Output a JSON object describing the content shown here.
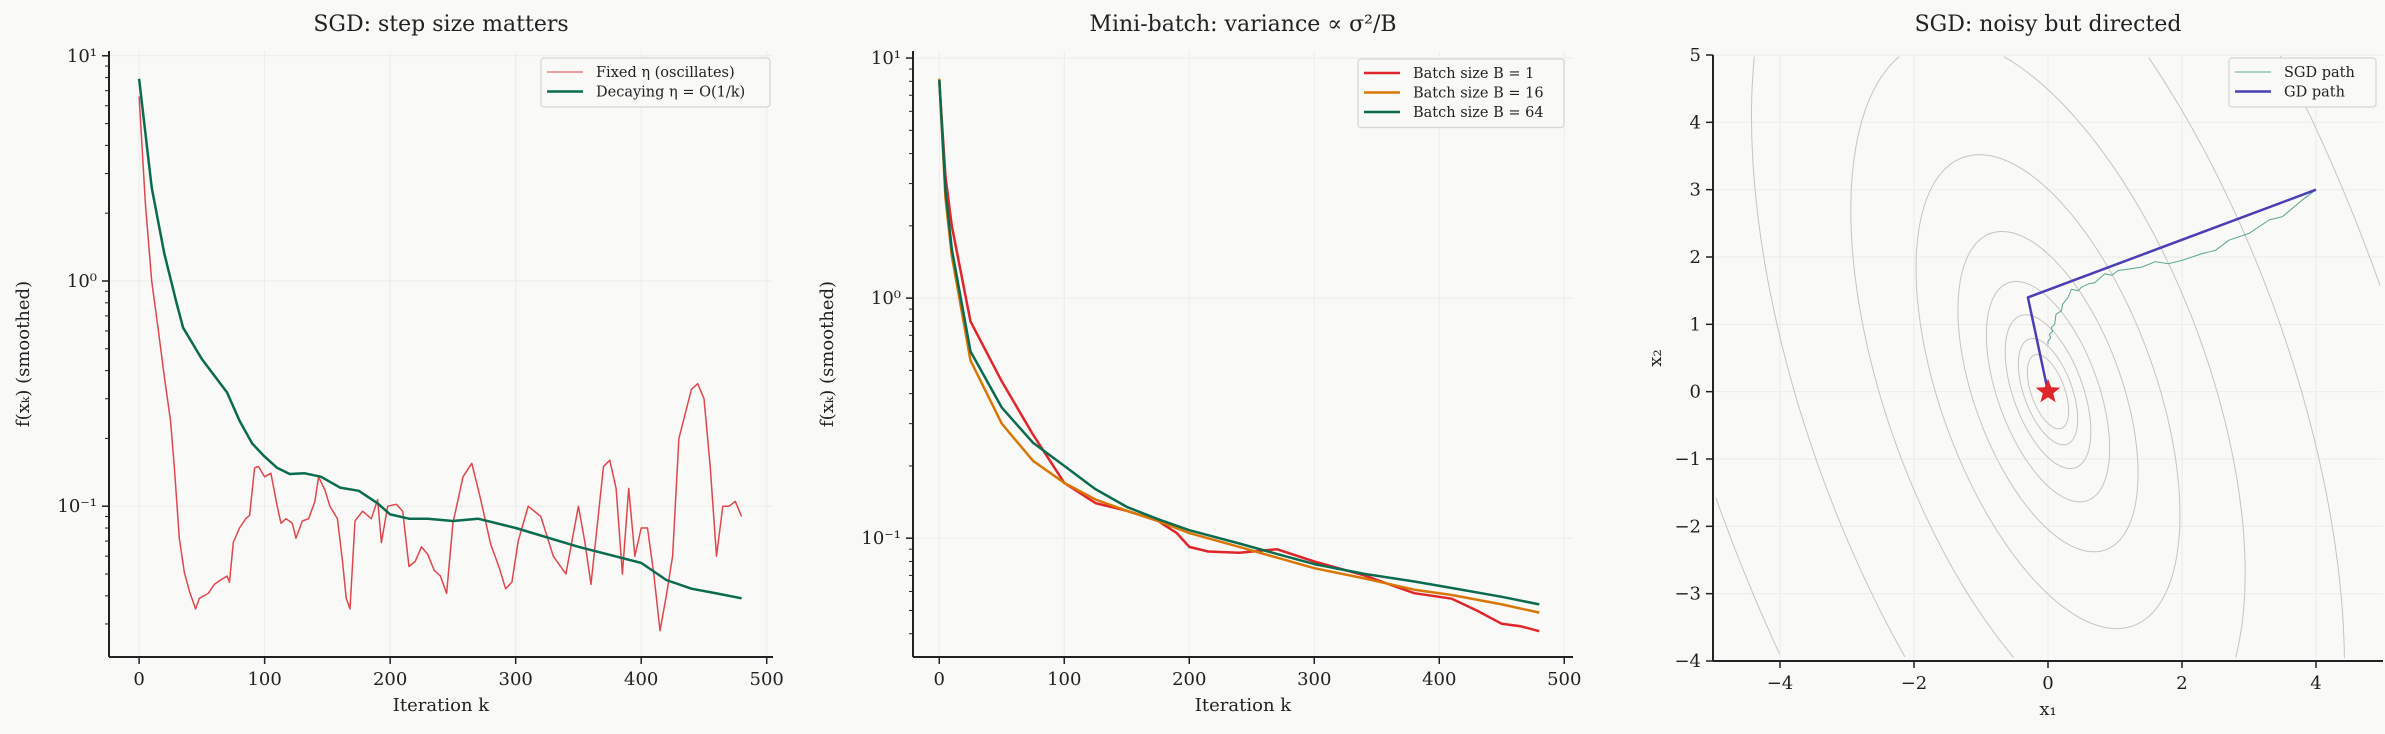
{
  "chart_data": [
    {
      "type": "line",
      "title": "SGD: step size matters",
      "xlabel": "Iteration k",
      "ylabel": "f(xₖ) (smoothed)",
      "xlim": [
        -24,
        505
      ],
      "ylim": [
        0.0214,
        10.5
      ],
      "yscale": "log",
      "grid": true,
      "legend": "top-right",
      "xticks": [
        0,
        100,
        200,
        300,
        400,
        500
      ],
      "xticklabels": [
        "0",
        "100",
        "200",
        "300",
        "400",
        "500"
      ],
      "yticks": [
        10,
        1,
        0.1
      ],
      "yticklabels": [
        "10¹",
        "10⁰",
        "10⁻¹"
      ],
      "series": [
        {
          "name": "Fixed η (oscillates)",
          "color": "#e0474c",
          "width": 1.5,
          "x": [
            0,
            5,
            10,
            15,
            20,
            25,
            28,
            32,
            36,
            40,
            45,
            48,
            55,
            60,
            65,
            70,
            72,
            75,
            80,
            85,
            88,
            90,
            92,
            95,
            100,
            105,
            110,
            113,
            117,
            122,
            125,
            130,
            135,
            140,
            143,
            148,
            152,
            158,
            162,
            165,
            168,
            172,
            178,
            185,
            190,
            193,
            198,
            205,
            210,
            215,
            220,
            225,
            230,
            235,
            240,
            245,
            250,
            258,
            265,
            272,
            280,
            287,
            292,
            297,
            302,
            310,
            320,
            330,
            340,
            350,
            355,
            360,
            370,
            375,
            380,
            385,
            390,
            395,
            400,
            405,
            410,
            415,
            420,
            425,
            430,
            440,
            445,
            450,
            455,
            460,
            465,
            470,
            475,
            480
          ],
          "y": [
            6.6,
            2.2,
            1.0,
            0.62,
            0.38,
            0.24,
            0.15,
            0.072,
            0.051,
            0.042,
            0.035,
            0.039,
            0.041,
            0.045,
            0.047,
            0.049,
            0.046,
            0.069,
            0.08,
            0.088,
            0.091,
            0.116,
            0.148,
            0.15,
            0.135,
            0.14,
            0.1,
            0.084,
            0.088,
            0.084,
            0.072,
            0.086,
            0.088,
            0.105,
            0.135,
            0.118,
            0.1,
            0.088,
            0.057,
            0.039,
            0.035,
            0.086,
            0.095,
            0.088,
            0.107,
            0.069,
            0.1,
            0.102,
            0.095,
            0.054,
            0.057,
            0.066,
            0.061,
            0.052,
            0.049,
            0.041,
            0.084,
            0.135,
            0.155,
            0.108,
            0.068,
            0.053,
            0.043,
            0.046,
            0.07,
            0.1,
            0.09,
            0.06,
            0.05,
            0.1,
            0.07,
            0.045,
            0.15,
            0.16,
            0.12,
            0.05,
            0.12,
            0.06,
            0.08,
            0.08,
            0.05,
            0.028,
            0.04,
            0.06,
            0.2,
            0.33,
            0.35,
            0.3,
            0.15,
            0.06,
            0.1,
            0.1,
            0.105,
            0.09
          ]
        },
        {
          "name": "Decaying η = O(1/k)",
          "color": "#0b6b4f",
          "width": 2.5,
          "x": [
            0,
            10,
            20,
            30,
            35,
            50,
            70,
            80,
            90,
            100,
            110,
            120,
            132,
            145,
            160,
            175,
            190,
            200,
            215,
            230,
            250,
            270,
            300,
            350,
            400,
            420,
            440,
            460,
            480
          ],
          "y": [
            7.9,
            2.6,
            1.33,
            0.79,
            0.62,
            0.45,
            0.32,
            0.24,
            0.19,
            0.166,
            0.148,
            0.139,
            0.14,
            0.135,
            0.121,
            0.117,
            0.103,
            0.092,
            0.088,
            0.088,
            0.086,
            0.088,
            0.08,
            0.066,
            0.056,
            0.047,
            0.043,
            0.041,
            0.039
          ]
        }
      ]
    },
    {
      "type": "line",
      "title": "Mini-batch: variance ∝ σ²/B",
      "xlabel": "Iteration k",
      "ylabel": "f(xₖ) (smoothed)",
      "xlim": [
        -21,
        507
      ],
      "ylim": [
        0.032,
        10.7
      ],
      "yscale": "log",
      "grid": true,
      "legend": "top-right",
      "xticks": [
        0,
        100,
        200,
        300,
        400,
        500
      ],
      "xticklabels": [
        "0",
        "100",
        "200",
        "300",
        "400",
        "500"
      ],
      "yticks": [
        10,
        1,
        0.1
      ],
      "yticklabels": [
        "10¹",
        "10⁰",
        "10⁻¹"
      ],
      "series": [
        {
          "name": "Batch size B = 1",
          "color": "#e0262a",
          "width": 2.5,
          "x": [
            0,
            5,
            10,
            25,
            50,
            75,
            100,
            125,
            150,
            175,
            190,
            200,
            215,
            240,
            270,
            300,
            340,
            380,
            410,
            430,
            450,
            465,
            480
          ],
          "y": [
            8.0,
            3.2,
            2.0,
            0.8,
            0.45,
            0.27,
            0.17,
            0.14,
            0.13,
            0.118,
            0.105,
            0.092,
            0.088,
            0.087,
            0.09,
            0.08,
            0.07,
            0.059,
            0.056,
            0.05,
            0.044,
            0.043,
            0.041
          ]
        },
        {
          "name": "Batch size B = 16",
          "color": "#d97706",
          "width": 2.5,
          "x": [
            0,
            5,
            10,
            25,
            50,
            75,
            100,
            125,
            150,
            175,
            200,
            240,
            270,
            300,
            340,
            380,
            410,
            450,
            480
          ],
          "y": [
            8.2,
            2.6,
            1.5,
            0.55,
            0.3,
            0.21,
            0.17,
            0.145,
            0.13,
            0.118,
            0.105,
            0.092,
            0.083,
            0.075,
            0.068,
            0.061,
            0.058,
            0.053,
            0.049
          ]
        },
        {
          "name": "Batch size B = 64",
          "color": "#0b6b4f",
          "width": 2.5,
          "x": [
            0,
            5,
            10,
            25,
            50,
            75,
            100,
            125,
            150,
            175,
            200,
            240,
            270,
            300,
            340,
            380,
            410,
            450,
            480
          ],
          "y": [
            8.1,
            2.8,
            1.6,
            0.6,
            0.35,
            0.25,
            0.2,
            0.16,
            0.135,
            0.12,
            0.108,
            0.095,
            0.086,
            0.078,
            0.071,
            0.066,
            0.062,
            0.057,
            0.053
          ]
        }
      ]
    },
    {
      "type": "line",
      "title": "SGD: noisy but directed",
      "xlabel": "x₁",
      "ylabel": "x₂",
      "xlim": [
        -5,
        5
      ],
      "ylim": [
        -4,
        5
      ],
      "grid": true,
      "legend": "top-right",
      "xticks": [
        -4,
        -2,
        0,
        2,
        4
      ],
      "xticklabels": [
        "−4",
        "−2",
        "0",
        "2",
        "4"
      ],
      "yticks": [
        -4,
        -3,
        -2,
        -1,
        0,
        1,
        2,
        3,
        4,
        5
      ],
      "yticklabels": [
        "−4",
        "−3",
        "−2",
        "−1",
        "0",
        "1",
        "2",
        "3",
        "4",
        "5"
      ],
      "contours": {
        "color": "#c4c4c4",
        "tilt_deg": 20,
        "semi_axes": [
          [
            0.25,
            0.58
          ],
          [
            0.36,
            0.83
          ],
          [
            0.52,
            1.2
          ],
          [
            0.75,
            1.72
          ],
          [
            1.1,
            2.5
          ],
          [
            1.6,
            3.7
          ],
          [
            2.4,
            5.5
          ],
          [
            3.6,
            8.3
          ],
          [
            5.2,
            12
          ]
        ]
      },
      "minimum": {
        "x": 0,
        "y": 0,
        "marker": "star",
        "color": "#e0262a"
      },
      "series": [
        {
          "name": "SGD path",
          "color": "#5aa88a",
          "width": 1,
          "x": [
            4,
            3.8,
            3.5,
            3.3,
            3.0,
            2.7,
            2.5,
            2.3,
            2.0,
            1.8,
            1.6,
            1.4,
            1.2,
            1.05,
            0.95,
            0.85,
            0.7,
            0.6,
            0.5,
            0.45,
            0.35,
            0.3,
            0.22,
            0.2,
            0.12,
            0.1,
            0.05,
            0.07,
            0.02,
            0.04,
            0.0,
            0.0
          ],
          "y": [
            3.0,
            2.85,
            2.6,
            2.55,
            2.35,
            2.25,
            2.1,
            2.05,
            1.95,
            1.9,
            1.93,
            1.85,
            1.82,
            1.8,
            1.73,
            1.75,
            1.62,
            1.6,
            1.55,
            1.5,
            1.52,
            1.4,
            1.3,
            1.2,
            1.15,
            1.0,
            0.95,
            0.9,
            0.85,
            0.8,
            0.75,
            0.7
          ]
        },
        {
          "name": "GD path",
          "color": "#4a3fb5",
          "width": 2.5,
          "x": [
            4,
            -0.3,
            0
          ],
          "y": [
            3,
            1.4,
            0
          ]
        }
      ]
    }
  ]
}
